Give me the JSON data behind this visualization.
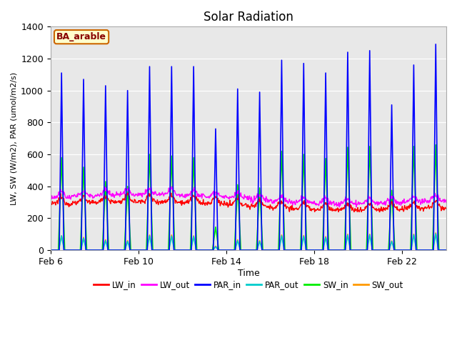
{
  "title": "Solar Radiation",
  "xlabel": "Time",
  "ylabel": "LW, SW (W/m2), PAR (umol/m2/s)",
  "ylim": [
    0,
    1400
  ],
  "site_label": "BA_arable",
  "num_days": 18,
  "series": {
    "LW_in": {
      "color": "#ff0000",
      "lw": 1.0
    },
    "LW_out": {
      "color": "#ff00ff",
      "lw": 1.0
    },
    "PAR_in": {
      "color": "#0000ff",
      "lw": 1.2
    },
    "PAR_out": {
      "color": "#00cccc",
      "lw": 1.2
    },
    "SW_in": {
      "color": "#00ee00",
      "lw": 1.2
    },
    "SW_out": {
      "color": "#ff9900",
      "lw": 1.2
    }
  },
  "xtick_labels": [
    "Feb 6",
    "Feb 10",
    "Feb 14",
    "Feb 18",
    "Feb 22"
  ],
  "xtick_positions": [
    0,
    4,
    8,
    12,
    16
  ],
  "background_color": "#e8e8e8",
  "par_in_peaks": [
    1110,
    1070,
    1030,
    1000,
    1150,
    1150,
    1150,
    760,
    1010,
    990,
    1190,
    1170,
    1110,
    1240,
    1250,
    910,
    1160,
    1290
  ],
  "sw_in_peaks": [
    580,
    520,
    430,
    400,
    600,
    590,
    580,
    145,
    410,
    390,
    620,
    600,
    575,
    645,
    650,
    375,
    650,
    660
  ],
  "sw_out_peaks": [
    90,
    80,
    65,
    60,
    95,
    95,
    90,
    25,
    65,
    60,
    95,
    92,
    85,
    100,
    100,
    58,
    100,
    108
  ],
  "par_out_peaks": [
    90,
    75,
    60,
    55,
    90,
    88,
    86,
    22,
    60,
    55,
    90,
    87,
    80,
    95,
    96,
    55,
    96,
    103
  ],
  "lw_in_base": 300,
  "lw_out_base": 340,
  "pts_per_day": 48
}
